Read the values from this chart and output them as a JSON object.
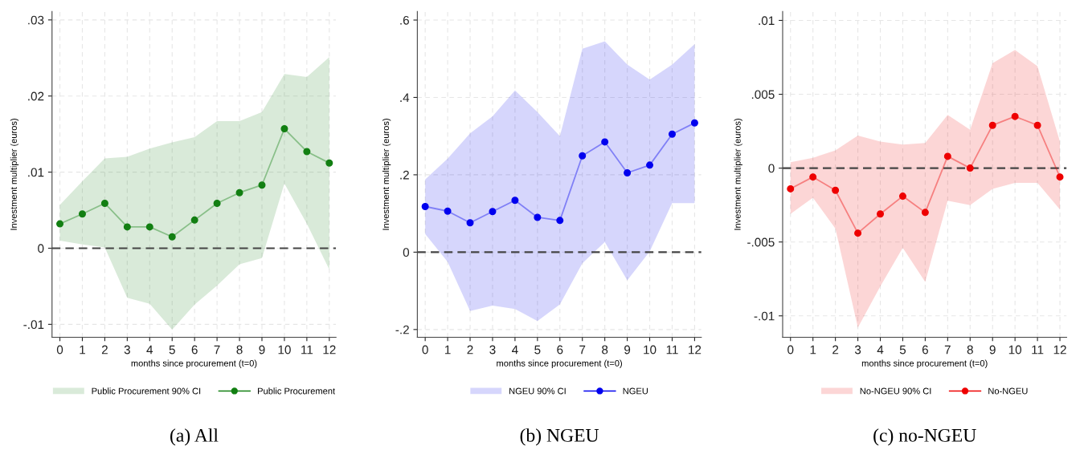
{
  "chart_data": [
    {
      "type": "line",
      "title": "(a) All",
      "xlabel": "months since procurement (t=0)",
      "ylabel": "Investment multiplier (euros)",
      "annotations": [
        "Public Procurement 90% CI"
      ],
      "x": [
        0,
        1,
        2,
        3,
        4,
        5,
        6,
        7,
        8,
        9,
        10,
        11,
        12
      ],
      "xlim": [
        -0.35,
        12.3
      ],
      "xticks": [
        0,
        1,
        2,
        3,
        4,
        5,
        6,
        7,
        8,
        9,
        10,
        11,
        12
      ],
      "ylim": [
        -0.0117,
        0.0311
      ],
      "yticks": [
        {
          "value": -0.01,
          "label": "-.01"
        },
        0,
        {
          "value": 0.01,
          "label": ".01"
        },
        {
          "value": 0.02,
          "label": ".02"
        },
        {
          "value": 0.03,
          "label": ".03"
        }
      ],
      "series": [
        {
          "name": "Public Procurement",
          "color": "#127f12",
          "values": [
            0.0032,
            0.0045,
            0.0059,
            0.0028,
            0.0028,
            0.0015,
            0.0037,
            0.0059,
            0.0073,
            0.0083,
            0.0157,
            0.0127,
            0.0112
          ],
          "lower": [
            0.001,
            0.0005,
            0.0001,
            -0.0065,
            -0.0073,
            -0.0107,
            -0.0074,
            -0.0049,
            -0.0021,
            -0.0013,
            0.0085,
            0.0032,
            -0.0028
          ],
          "upper": [
            0.0057,
            0.0088,
            0.0118,
            0.012,
            0.0131,
            0.0139,
            0.0146,
            0.0167,
            0.0167,
            0.0179,
            0.0229,
            0.0225,
            0.0251
          ]
        }
      ],
      "ref_lines": [
        {
          "axis": "y",
          "value": 0,
          "color": "#444444",
          "line_style": "dashed"
        }
      ],
      "grid": true,
      "legend": "bottom",
      "marker": "circle"
    },
    {
      "type": "line",
      "title": "(b) NGEU",
      "xlabel": "months since procurement (t=0)",
      "ylabel": "Investment multiplier (euros)",
      "annotations": [
        "NGEU 90% CI"
      ],
      "x": [
        0,
        1,
        2,
        3,
        4,
        5,
        6,
        7,
        8,
        9,
        10,
        11,
        12
      ],
      "xlim": [
        -0.35,
        12.3
      ],
      "xticks": [
        0,
        1,
        2,
        3,
        4,
        5,
        6,
        7,
        8,
        9,
        10,
        11,
        12
      ],
      "ylim": [
        -0.22,
        0.622
      ],
      "yticks": [
        {
          "value": -0.2,
          "label": "-.2"
        },
        0,
        {
          "value": 0.2,
          "label": ".2"
        },
        {
          "value": 0.4,
          "label": ".4"
        },
        {
          "value": 0.6,
          "label": ".6"
        }
      ],
      "series": [
        {
          "name": "NGEU",
          "color": "#0000ee",
          "values": [
            0.118,
            0.106,
            0.076,
            0.105,
            0.134,
            0.09,
            0.082,
            0.249,
            0.285,
            0.205,
            0.225,
            0.305,
            0.334
          ],
          "lower": [
            0.047,
            -0.025,
            -0.152,
            -0.138,
            -0.147,
            -0.178,
            -0.135,
            -0.029,
            0.026,
            -0.073,
            0.002,
            0.127,
            0.127
          ],
          "upper": [
            0.188,
            0.242,
            0.307,
            0.351,
            0.418,
            0.362,
            0.3,
            0.526,
            0.545,
            0.485,
            0.446,
            0.485,
            0.538
          ]
        }
      ],
      "ref_lines": [
        {
          "axis": "y",
          "value": 0,
          "color": "#444444",
          "line_style": "dashed"
        }
      ],
      "grid": true,
      "legend": "bottom",
      "marker": "circle"
    },
    {
      "type": "line",
      "title": "(c) no-NGEU",
      "xlabel": "months since procurement (t=0)",
      "ylabel": "Investment multiplier (euros)",
      "annotations": [
        "No-NGEU 90% CI"
      ],
      "x": [
        0,
        1,
        2,
        3,
        4,
        5,
        6,
        7,
        8,
        9,
        10,
        11,
        12
      ],
      "xlim": [
        -0.35,
        12.3
      ],
      "xticks": [
        0,
        1,
        2,
        3,
        4,
        5,
        6,
        7,
        8,
        9,
        10,
        11,
        12
      ],
      "ylim": [
        -0.01145,
        0.0106
      ],
      "yticks": [
        {
          "value": -0.01,
          "label": "-.01"
        },
        {
          "value": -0.005,
          "label": "-.005"
        },
        0,
        {
          "value": 0.005,
          "label": ".005"
        },
        {
          "value": 0.01,
          "label": ".01"
        }
      ],
      "series": [
        {
          "name": "No-NGEU",
          "color": "#ee0000",
          "values": [
            -0.0014,
            -0.0006,
            -0.0015,
            -0.0044,
            -0.0031,
            -0.0019,
            -0.003,
            0.0008,
            0.0,
            0.0029,
            0.0035,
            0.0029,
            -0.0006
          ],
          "lower": [
            -0.0031,
            -0.002,
            -0.0041,
            -0.0108,
            -0.008,
            -0.0054,
            -0.0077,
            -0.0022,
            -0.0025,
            -0.0014,
            -0.001,
            -0.001,
            -0.0028
          ],
          "upper": [
            0.0004,
            0.0007,
            0.0012,
            0.0022,
            0.0018,
            0.0016,
            0.0017,
            0.0036,
            0.0026,
            0.0071,
            0.008,
            0.0069,
            0.0018
          ]
        }
      ],
      "ref_lines": [
        {
          "axis": "y",
          "value": 0,
          "color": "#444444",
          "line_style": "dashed"
        }
      ],
      "grid": true,
      "legend": "bottom",
      "marker": "circle"
    }
  ]
}
